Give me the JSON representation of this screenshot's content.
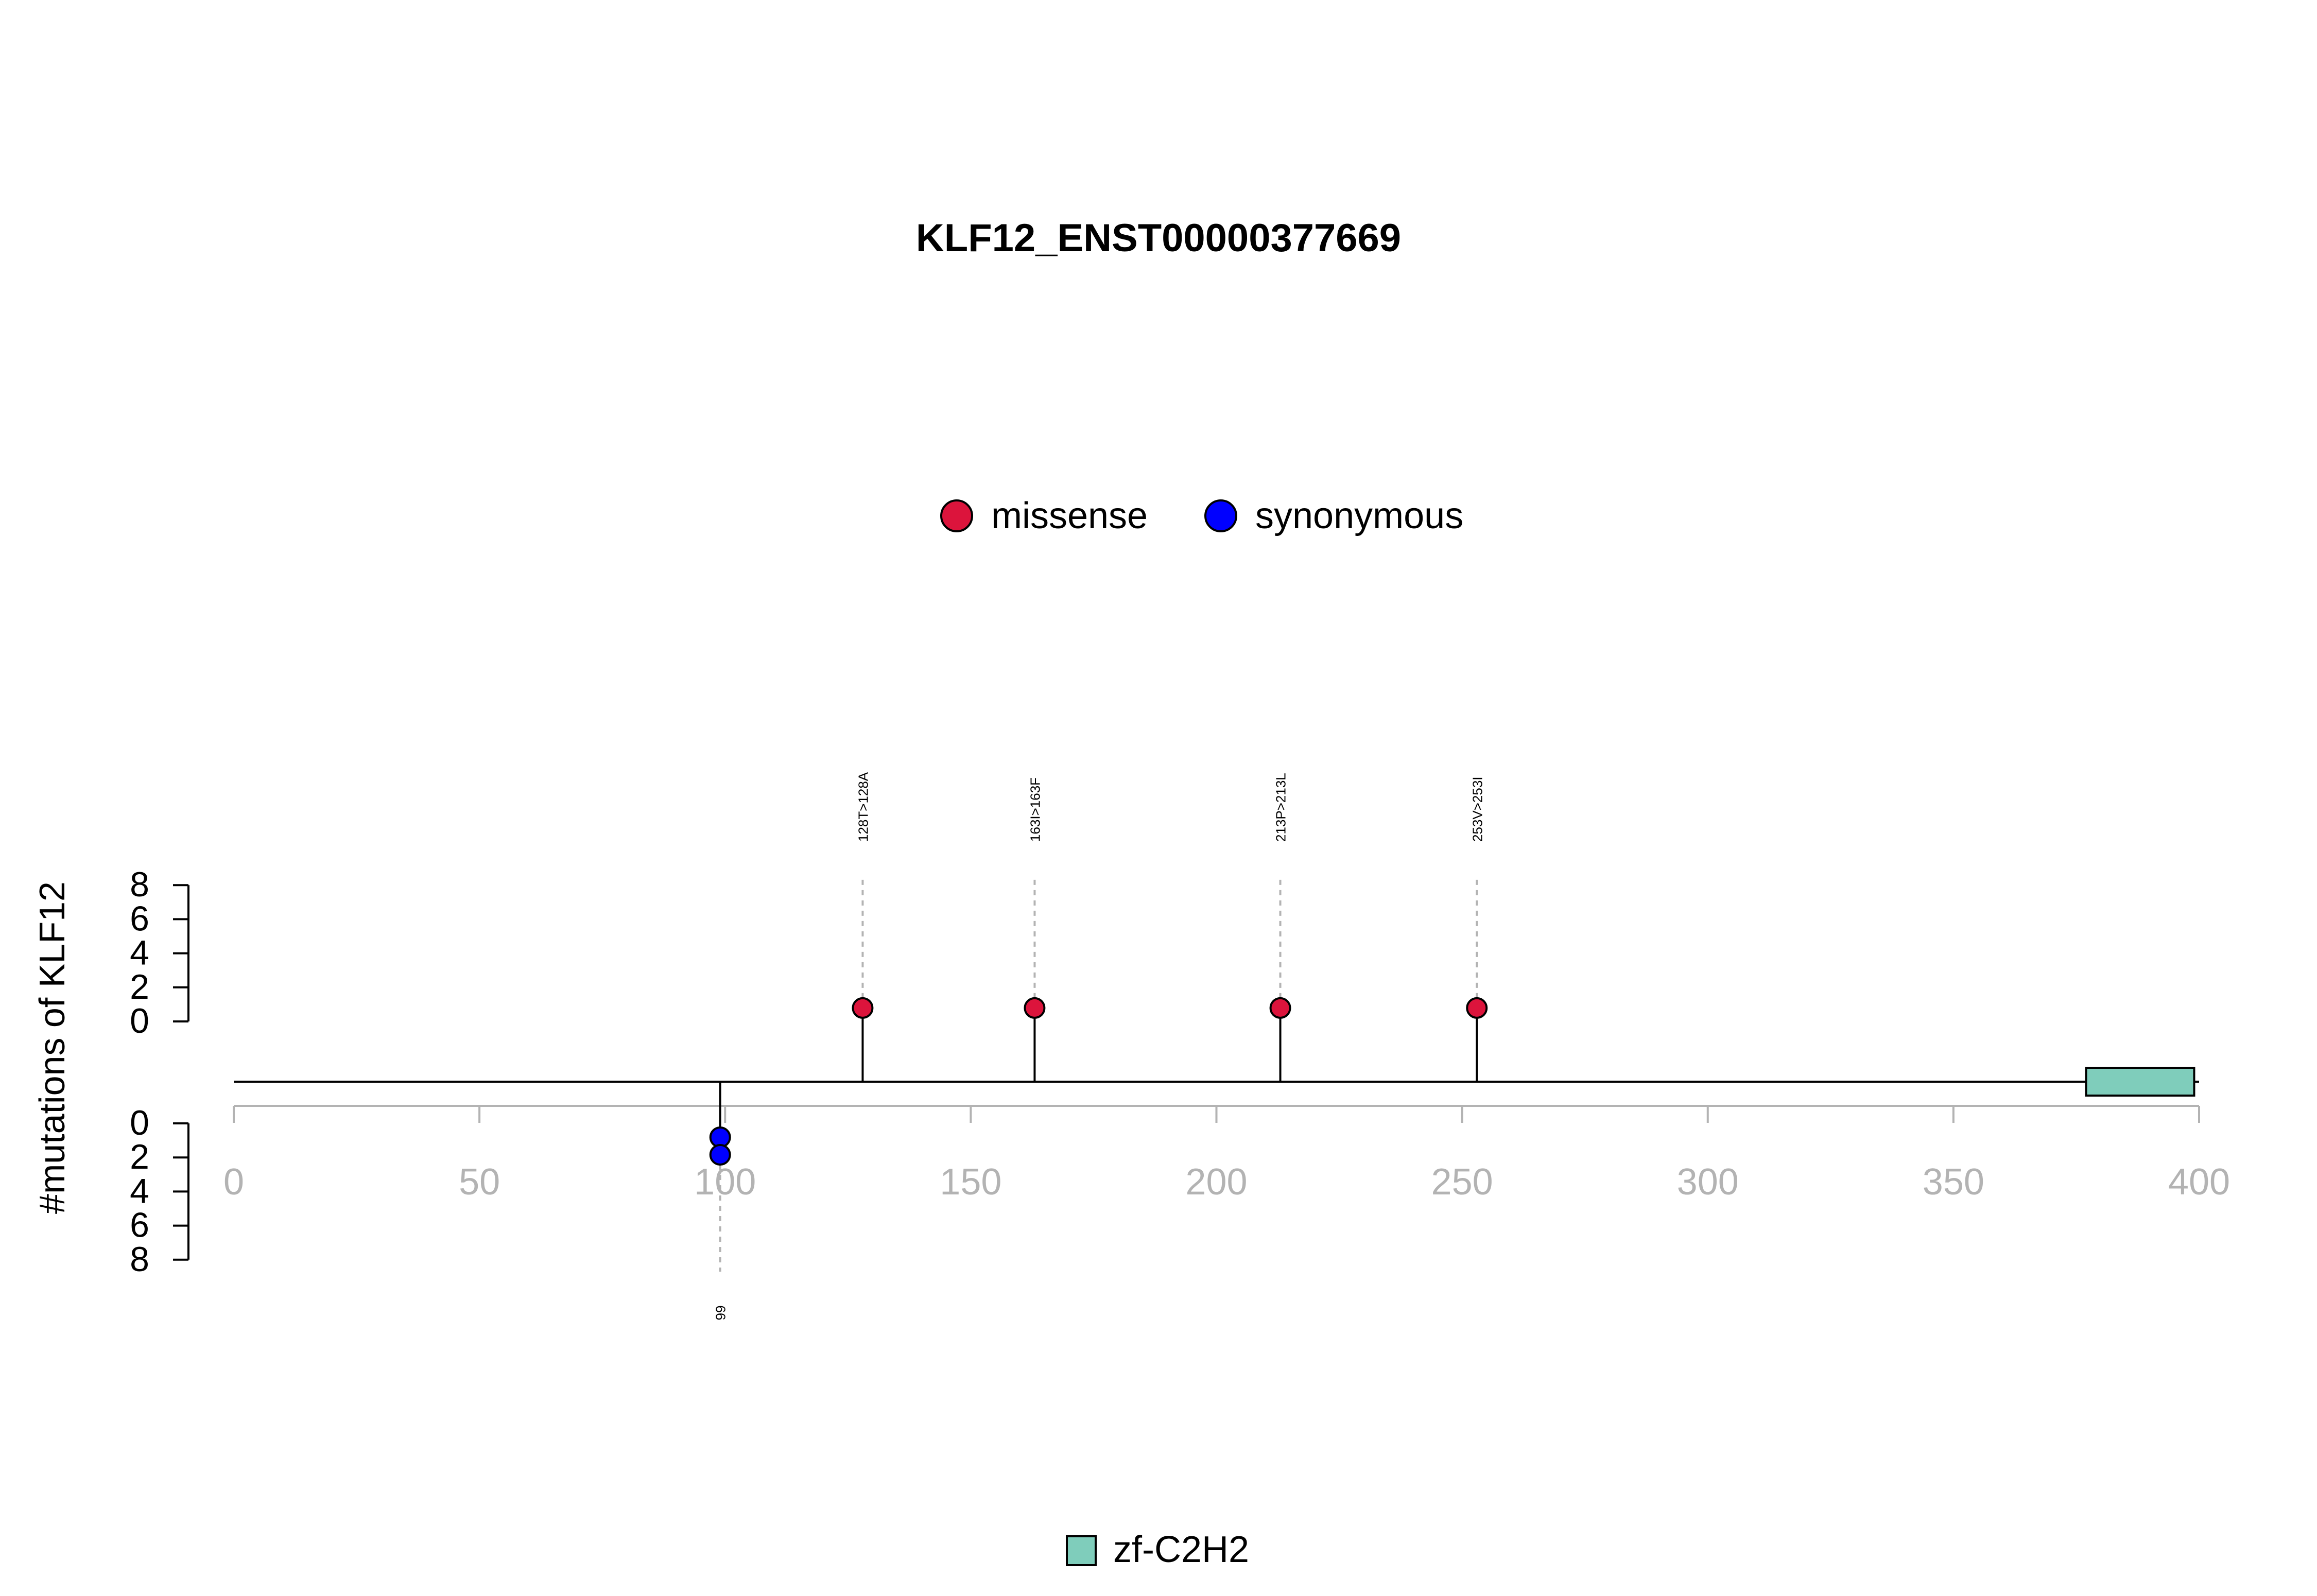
{
  "chart_data": {
    "type": "lollipop",
    "title": "KLF12_ENST00000377669",
    "ylabel": "#mutations of KLF12",
    "xlim": [
      0,
      400
    ],
    "x_ticks": [
      0,
      50,
      100,
      150,
      200,
      250,
      300,
      350,
      400
    ],
    "y_ticks_upper": [
      0,
      2,
      4,
      6,
      8
    ],
    "y_ticks_lower": [
      0,
      2,
      4,
      6,
      8
    ],
    "protein_length": 400,
    "legend_mutation": [
      {
        "name": "missense",
        "color": "#DC143C"
      },
      {
        "name": "synonymous",
        "color": "#0000FF"
      }
    ],
    "mutations_upper": [
      {
        "position": 128,
        "count": 1,
        "type": "missense",
        "label": "128T>128A"
      },
      {
        "position": 163,
        "count": 1,
        "type": "missense",
        "label": "163I>163F"
      },
      {
        "position": 213,
        "count": 1,
        "type": "missense",
        "label": "213P>213L"
      },
      {
        "position": 253,
        "count": 1,
        "type": "missense",
        "label": "253V>253I"
      }
    ],
    "mutations_lower": [
      {
        "position": 99,
        "count": 2,
        "type": "synonymous",
        "label": "99"
      }
    ],
    "domains": [
      {
        "name": "zf-C2H2",
        "start": 377,
        "end": 399,
        "color": "#7FCDBB"
      }
    ]
  }
}
